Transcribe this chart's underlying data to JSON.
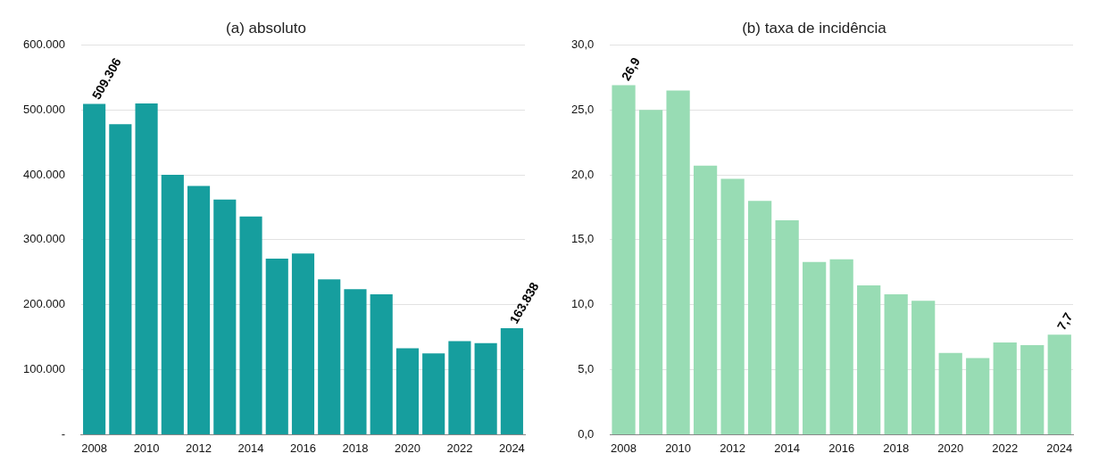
{
  "chart_data": [
    {
      "type": "bar",
      "title": "(a) absoluto",
      "categories": [
        "2008",
        null,
        "2010",
        null,
        "2012",
        null,
        "2014",
        null,
        "2016",
        null,
        "2018",
        null,
        "2020",
        null,
        "2022",
        null,
        "2024"
      ],
      "values": [
        509306,
        478000,
        510000,
        400000,
        383000,
        362000,
        336000,
        271000,
        279000,
        239000,
        224000,
        216000,
        133000,
        125000,
        144000,
        141000,
        163838
      ],
      "value_labels": [
        "509.306",
        null,
        null,
        null,
        null,
        null,
        null,
        null,
        null,
        null,
        null,
        null,
        null,
        null,
        null,
        null,
        "163.838"
      ],
      "color": "#169e9e",
      "ylim": [
        0,
        600000
      ],
      "yticks": [
        {
          "value": 0,
          "label": "-"
        },
        {
          "value": 100000,
          "label": "100.000"
        },
        {
          "value": 200000,
          "label": "200.000"
        },
        {
          "value": 300000,
          "label": "300.000"
        },
        {
          "value": 400000,
          "label": "400.000"
        },
        {
          "value": 500000,
          "label": "500.000"
        },
        {
          "value": 600000,
          "label": "600.000"
        }
      ],
      "grid": "y"
    },
    {
      "type": "bar",
      "title": "(b) taxa de incidência",
      "categories": [
        "2008",
        null,
        "2010",
        null,
        "2012",
        null,
        "2014",
        null,
        "2016",
        null,
        "2018",
        null,
        "2020",
        null,
        "2022",
        null,
        "2024"
      ],
      "values": [
        26.9,
        25.0,
        26.5,
        20.7,
        19.7,
        18.0,
        16.5,
        13.3,
        13.5,
        11.5,
        10.8,
        10.3,
        6.3,
        5.9,
        7.1,
        6.9,
        7.7
      ],
      "value_labels": [
        "26,9",
        null,
        null,
        null,
        null,
        null,
        null,
        null,
        null,
        null,
        null,
        null,
        null,
        null,
        null,
        null,
        "7,7"
      ],
      "color": "#98dcb4",
      "ylim": [
        0,
        30
      ],
      "yticks": [
        {
          "value": 0,
          "label": "0,0"
        },
        {
          "value": 5,
          "label": "5,0"
        },
        {
          "value": 10,
          "label": "10,0"
        },
        {
          "value": 15,
          "label": "15,0"
        },
        {
          "value": 20,
          "label": "20,0"
        },
        {
          "value": 25,
          "label": "25,0"
        },
        {
          "value": 30,
          "label": "30,0"
        }
      ],
      "grid": "y"
    }
  ]
}
